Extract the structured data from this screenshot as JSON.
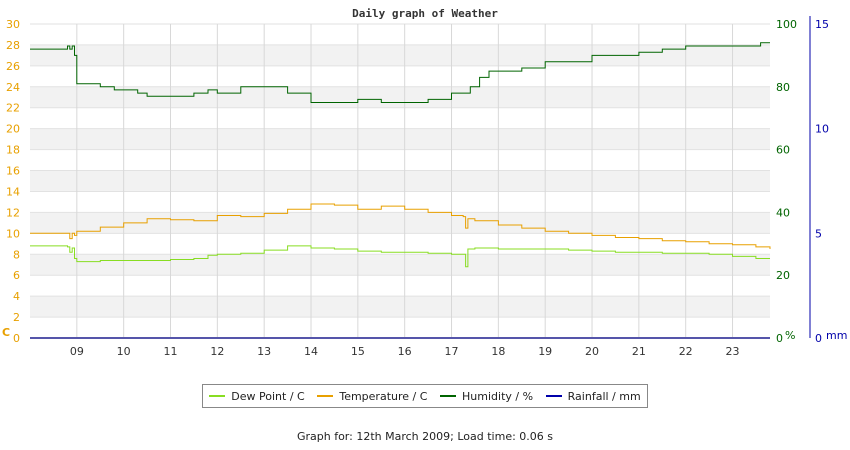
{
  "chart_data": {
    "type": "line",
    "title": "Daily graph of Weather",
    "x_ticks": [
      "09",
      "10",
      "11",
      "12",
      "13",
      "14",
      "15",
      "16",
      "17",
      "18",
      "19",
      "20",
      "21",
      "22",
      "23"
    ],
    "x_range": [
      8.0,
      23.8
    ],
    "axes": {
      "left": {
        "label": "C",
        "range": [
          0,
          30
        ],
        "ticks": [
          "0",
          "2",
          "4",
          "6",
          "8",
          "10",
          "12",
          "14",
          "16",
          "18",
          "20",
          "22",
          "24",
          "26",
          "28",
          "30"
        ],
        "color": "#e8a000"
      },
      "right1": {
        "label": "%",
        "range": [
          0,
          100
        ],
        "ticks": [
          "0",
          "20",
          "40",
          "60",
          "80",
          "100"
        ],
        "color": "#006400"
      },
      "right2": {
        "label": "mm",
        "range": [
          0,
          15
        ],
        "ticks": [
          "0",
          "5",
          "10",
          "15"
        ],
        "color": "#0000aa"
      }
    },
    "grid": true,
    "legend_position": "bottom",
    "series": [
      {
        "name": "Dew Point / C",
        "axis": "left",
        "color": "#88dd22",
        "x": [
          8.0,
          8.8,
          8.85,
          8.9,
          8.95,
          9.0,
          9.5,
          10.0,
          10.5,
          11.0,
          11.5,
          11.8,
          12.0,
          12.5,
          13.0,
          13.5,
          14.0,
          14.5,
          15.0,
          15.5,
          16.0,
          16.5,
          17.0,
          17.25,
          17.3,
          17.35,
          17.5,
          18.0,
          18.5,
          19.0,
          19.5,
          20.0,
          20.5,
          21.0,
          21.5,
          22.0,
          22.5,
          23.0,
          23.5,
          23.8
        ],
        "values": [
          8.8,
          8.7,
          8.2,
          8.6,
          7.6,
          7.3,
          7.4,
          7.4,
          7.4,
          7.5,
          7.6,
          7.9,
          8.0,
          8.1,
          8.4,
          8.8,
          8.6,
          8.5,
          8.3,
          8.2,
          8.2,
          8.1,
          8.0,
          8.0,
          6.8,
          8.5,
          8.6,
          8.5,
          8.5,
          8.5,
          8.4,
          8.3,
          8.2,
          8.2,
          8.1,
          8.1,
          8.0,
          7.8,
          7.6,
          7.6
        ]
      },
      {
        "name": "Temperature / C",
        "axis": "left",
        "color": "#e8a000",
        "x": [
          8.0,
          8.8,
          8.85,
          8.9,
          8.95,
          9.0,
          9.5,
          10.0,
          10.5,
          11.0,
          11.5,
          12.0,
          12.5,
          13.0,
          13.5,
          14.0,
          14.5,
          15.0,
          15.5,
          16.0,
          16.5,
          17.0,
          17.25,
          17.3,
          17.35,
          17.5,
          18.0,
          18.5,
          19.0,
          19.5,
          20.0,
          20.5,
          21.0,
          21.5,
          22.0,
          22.5,
          23.0,
          23.5,
          23.8
        ],
        "values": [
          10.0,
          10.0,
          9.5,
          10.0,
          9.8,
          10.2,
          10.6,
          11.0,
          11.4,
          11.3,
          11.2,
          11.7,
          11.6,
          11.9,
          12.3,
          12.8,
          12.7,
          12.3,
          12.6,
          12.3,
          12.0,
          11.7,
          11.6,
          10.5,
          11.4,
          11.2,
          10.8,
          10.5,
          10.2,
          10.0,
          9.8,
          9.6,
          9.5,
          9.3,
          9.2,
          9.0,
          8.9,
          8.7,
          8.5
        ]
      },
      {
        "name": "Humidity / %",
        "axis": "right1",
        "color": "#006400",
        "x": [
          8.0,
          8.75,
          8.8,
          8.85,
          8.9,
          8.95,
          9.0,
          9.3,
          9.5,
          9.8,
          10.0,
          10.3,
          10.5,
          10.8,
          11.0,
          11.5,
          11.8,
          12.0,
          12.5,
          13.0,
          13.5,
          14.0,
          14.5,
          14.8,
          15.0,
          15.3,
          15.5,
          15.8,
          16.0,
          16.5,
          17.0,
          17.4,
          17.6,
          17.8,
          18.0,
          18.5,
          19.0,
          19.5,
          20.0,
          20.5,
          21.0,
          21.5,
          22.0,
          22.5,
          23.0,
          23.5,
          23.6,
          23.8
        ],
        "values": [
          92,
          92,
          93,
          92,
          93,
          90,
          81,
          81,
          80,
          79,
          79,
          78,
          77,
          77,
          77,
          78,
          79,
          78,
          80,
          80,
          78,
          75,
          75,
          75,
          76,
          76,
          75,
          75,
          75,
          76,
          78,
          80,
          83,
          85,
          85,
          86,
          88,
          88,
          90,
          90,
          91,
          92,
          93,
          93,
          93,
          93,
          94,
          94
        ]
      },
      {
        "name": "Rainfall / mm",
        "axis": "right2",
        "color": "#0000aa",
        "x": [
          8.0,
          23.8
        ],
        "values": [
          0,
          0
        ]
      }
    ]
  },
  "footer": "Graph for: 12th March 2009; Load time: 0.06 s"
}
